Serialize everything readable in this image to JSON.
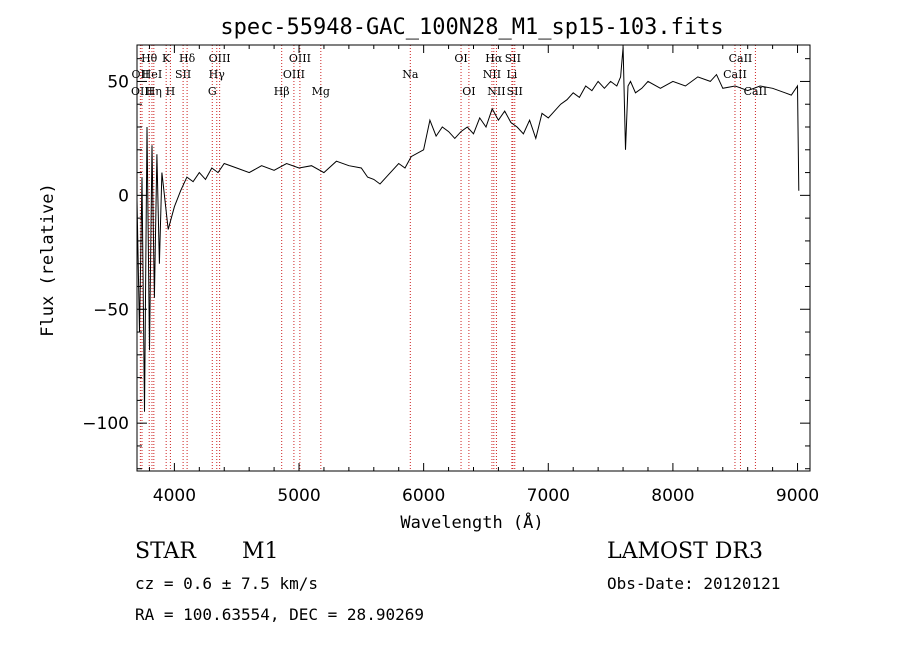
{
  "chart_data": {
    "type": "line",
    "title": "spec-55948-GAC_100N28_M1_sp15-103.fits",
    "xlabel": "Wavelength (Å)",
    "ylabel": "Flux (relative)",
    "xlim": [
      3700,
      9100
    ],
    "ylim": [
      -121,
      66
    ],
    "x_ticks": [
      4000,
      5000,
      6000,
      7000,
      8000,
      9000
    ],
    "y_ticks": [
      -100,
      -50,
      0,
      50
    ],
    "grid": false,
    "series": [
      {
        "name": "flux",
        "x": [
          3700,
          3720,
          3740,
          3760,
          3780,
          3800,
          3820,
          3840,
          3860,
          3880,
          3900,
          3950,
          4000,
          4050,
          4100,
          4150,
          4200,
          4250,
          4300,
          4350,
          4400,
          4500,
          4600,
          4700,
          4800,
          4900,
          5000,
          5100,
          5200,
          5300,
          5400,
          5500,
          5550,
          5600,
          5650,
          5700,
          5800,
          5850,
          5900,
          6000,
          6050,
          6100,
          6150,
          6200,
          6250,
          6300,
          6350,
          6400,
          6450,
          6500,
          6550,
          6600,
          6650,
          6700,
          6750,
          6800,
          6850,
          6900,
          6950,
          7000,
          7050,
          7100,
          7150,
          7200,
          7250,
          7300,
          7350,
          7400,
          7450,
          7500,
          7550,
          7580,
          7600,
          7620,
          7640,
          7660,
          7700,
          7750,
          7800,
          7900,
          8000,
          8100,
          8200,
          8300,
          8350,
          8400,
          8500,
          8550,
          8600,
          8700,
          8800,
          8900,
          8950,
          9000,
          9010
        ],
        "y": [
          -2,
          -60,
          8,
          -95,
          30,
          -68,
          22,
          -45,
          18,
          -30,
          10,
          -15,
          -5,
          2,
          8,
          6,
          10,
          7,
          12,
          10,
          14,
          12,
          10,
          13,
          11,
          14,
          12,
          13,
          10,
          15,
          13,
          12,
          8,
          7,
          5,
          8,
          14,
          12,
          17,
          20,
          33,
          26,
          30,
          28,
          25,
          28,
          30,
          27,
          34,
          30,
          38,
          33,
          37,
          32,
          30,
          27,
          33,
          25,
          36,
          34,
          37,
          40,
          42,
          45,
          43,
          48,
          46,
          50,
          47,
          50,
          48,
          52,
          65,
          20,
          48,
          50,
          45,
          47,
          50,
          47,
          50,
          48,
          52,
          50,
          53,
          47,
          48,
          47,
          46,
          48,
          47,
          45,
          44,
          48,
          2
        ]
      }
    ],
    "spectral_lines": [
      {
        "label": "Hθ",
        "wavelength": 3798,
        "row": 1
      },
      {
        "label": "OII",
        "wavelength": 3727,
        "row": 2
      },
      {
        "label": "OIII",
        "wavelength": 3740,
        "row": 3
      },
      {
        "label": "HeI",
        "wavelength": 3820,
        "row": 2
      },
      {
        "label": "Hη",
        "wavelength": 3835,
        "row": 3
      },
      {
        "label": "K",
        "wavelength": 3934,
        "row": 1
      },
      {
        "label": "SII",
        "wavelength": 4070,
        "row": 2
      },
      {
        "label": "H",
        "wavelength": 3968,
        "row": 3
      },
      {
        "label": "Hδ",
        "wavelength": 4102,
        "row": 1
      },
      {
        "label": "OIII",
        "wavelength": 4363,
        "row": 1
      },
      {
        "label": "Hγ",
        "wavelength": 4340,
        "row": 2
      },
      {
        "label": "G",
        "wavelength": 4304,
        "row": 3
      },
      {
        "label": "Hβ",
        "wavelength": 4861,
        "row": 3
      },
      {
        "label": "OIII",
        "wavelength": 5007,
        "row": 1
      },
      {
        "label": "OIII",
        "wavelength": 4959,
        "row": 2
      },
      {
        "label": "Mg",
        "wavelength": 5175,
        "row": 3
      },
      {
        "label": "Na",
        "wavelength": 5893,
        "row": 2
      },
      {
        "label": "OI",
        "wavelength": 6300,
        "row": 1
      },
      {
        "label": "OI",
        "wavelength": 6363,
        "row": 3
      },
      {
        "label": "Hα",
        "wavelength": 6563,
        "row": 1
      },
      {
        "label": "SII",
        "wavelength": 6716,
        "row": 1
      },
      {
        "label": "NII",
        "wavelength": 6548,
        "row": 2
      },
      {
        "label": "Li",
        "wavelength": 6708,
        "row": 2
      },
      {
        "label": "NII",
        "wavelength": 6584,
        "row": 3
      },
      {
        "label": "SII",
        "wavelength": 6731,
        "row": 3
      },
      {
        "label": "CaII",
        "wavelength": 8542,
        "row": 1
      },
      {
        "label": "CaII",
        "wavelength": 8498,
        "row": 2
      },
      {
        "label": "CaII",
        "wavelength": 8662,
        "row": 3
      }
    ]
  },
  "info": {
    "object_class": "STAR",
    "subclass": "M1",
    "survey": "LAMOST DR3",
    "redshift": "cz = 0.6 ± 7.5 km/s",
    "obs_date": "Obs-Date: 20120121",
    "coordinates": "RA = 100.63554, DEC =  28.90269"
  },
  "colors": {
    "line_marker": "#cc2222",
    "spectrum": "#000000",
    "axes": "#000000"
  }
}
